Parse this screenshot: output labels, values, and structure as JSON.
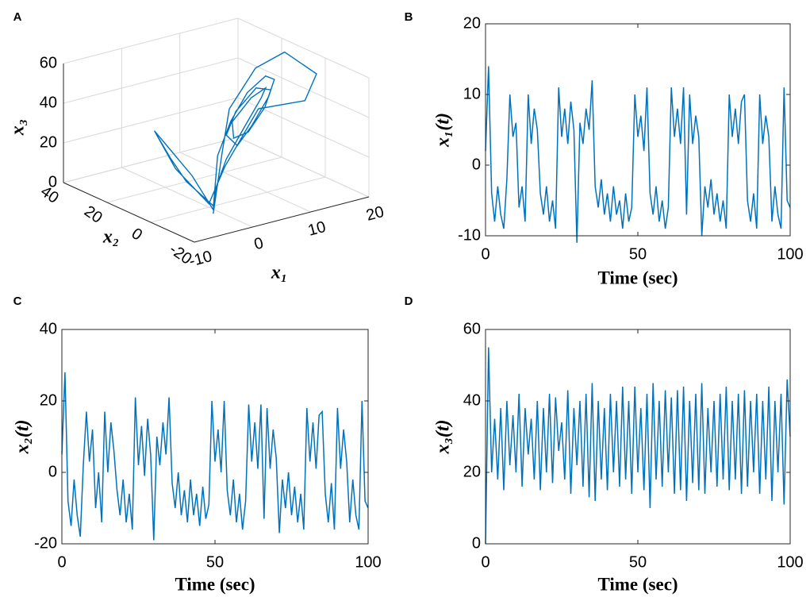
{
  "chart_data": [
    {
      "type": "line3d",
      "label": "A",
      "xlabel": "x₁",
      "ylabel": "x₂",
      "zlabel": "x₃",
      "color": "#0072bd",
      "xlim": [
        -10,
        20
      ],
      "xticks": [
        -10,
        0,
        10,
        20
      ],
      "ylim": [
        -20,
        40
      ],
      "yticks": [
        -20,
        0,
        20,
        40
      ],
      "zlim": [
        0,
        60
      ],
      "zticks": [
        0,
        20,
        40,
        60
      ],
      "grid": true,
      "x": [
        0,
        -1,
        -2,
        -3,
        -1,
        3,
        8,
        12,
        12,
        8,
        4,
        5,
        9,
        13,
        14,
        10,
        5,
        3,
        6,
        10,
        14,
        15,
        12,
        7,
        3,
        0,
        -2,
        -3,
        -1,
        0,
        0,
        -2,
        -3,
        2,
        10,
        18,
        20,
        16,
        8,
        2,
        0,
        -3
      ],
      "y": [
        25,
        15,
        5,
        -10,
        -6,
        0,
        5,
        8,
        6,
        2,
        0,
        2,
        6,
        9,
        9,
        5,
        1,
        0,
        3,
        7,
        10,
        10,
        6,
        1,
        -2,
        -4,
        -8,
        -10,
        5,
        20,
        25,
        10,
        -8,
        -2,
        4,
        4,
        4,
        8,
        0,
        -4,
        -6,
        -10
      ],
      "z": [
        26,
        18,
        12,
        8,
        14,
        22,
        32,
        42,
        48,
        48,
        40,
        30,
        28,
        36,
        44,
        50,
        44,
        34,
        25,
        30,
        40,
        48,
        54,
        52,
        42,
        28,
        14,
        6,
        14,
        22,
        26,
        16,
        8,
        20,
        40,
        38,
        50,
        62,
        64,
        50,
        30,
        4
      ]
    },
    {
      "type": "line",
      "label": "B",
      "xlabel": "Time (sec)",
      "ylabel": "x₁(t)",
      "color": "#0072bd",
      "xlim": [
        0,
        100
      ],
      "xticks": [
        0,
        50,
        100
      ],
      "ylim": [
        -10,
        20
      ],
      "yticks": [
        -10,
        0,
        10,
        20
      ],
      "x": [
        0,
        1,
        2,
        3,
        4,
        5,
        6,
        7,
        8,
        9,
        10,
        11,
        12,
        13,
        14,
        15,
        16,
        17,
        18,
        19,
        20,
        21,
        22,
        23,
        24,
        25,
        26,
        27,
        28,
        29,
        30,
        31,
        32,
        33,
        34,
        35,
        36,
        37,
        38,
        39,
        40,
        41,
        42,
        43,
        44,
        45,
        46,
        47,
        48,
        49,
        50,
        51,
        52,
        53,
        54,
        55,
        56,
        57,
        58,
        59,
        60,
        61,
        62,
        63,
        64,
        65,
        66,
        67,
        68,
        69,
        70,
        71,
        72,
        73,
        74,
        75,
        76,
        77,
        78,
        79,
        80,
        81,
        82,
        83,
        84,
        85,
        86,
        87,
        88,
        89,
        90,
        91,
        92,
        93,
        94,
        95,
        96,
        97,
        98,
        99,
        100
      ],
      "values": [
        2,
        14,
        -4,
        -8,
        -3,
        -7,
        -9,
        -2,
        10,
        4,
        6,
        -6,
        -3,
        -8,
        10,
        3,
        8,
        5,
        -4,
        -7,
        -3,
        -8,
        -5,
        -9,
        11,
        4,
        8,
        3,
        9,
        5,
        -11,
        6,
        3,
        8,
        5,
        12,
        -3,
        -6,
        -2,
        -7,
        -4,
        -8,
        -3,
        -7,
        -5,
        -9,
        -4,
        -8,
        -6,
        10,
        4,
        7,
        2,
        11,
        -4,
        -7,
        -3,
        -8,
        -5,
        -9,
        -6,
        11,
        4,
        8,
        3,
        11,
        -7,
        10,
        3,
        7,
        4,
        -10,
        -3,
        -6,
        -2,
        -7,
        -4,
        -8,
        -5,
        -9,
        10,
        4,
        8,
        3,
        9,
        10,
        -5,
        -8,
        -4,
        -9,
        10,
        3,
        7,
        4,
        -8,
        -3,
        -7,
        -9,
        11,
        -5,
        -6
      ]
    },
    {
      "type": "line",
      "label": "C",
      "xlabel": "Time (sec)",
      "ylabel": "x₂(t)",
      "color": "#0072bd",
      "xlim": [
        0,
        100
      ],
      "xticks": [
        0,
        50,
        100
      ],
      "ylim": [
        -20,
        40
      ],
      "yticks": [
        -20,
        0,
        20,
        40
      ],
      "x": [
        0,
        1,
        2,
        3,
        4,
        5,
        6,
        7,
        8,
        9,
        10,
        11,
        12,
        13,
        14,
        15,
        16,
        17,
        18,
        19,
        20,
        21,
        22,
        23,
        24,
        25,
        26,
        27,
        28,
        29,
        30,
        31,
        32,
        33,
        34,
        35,
        36,
        37,
        38,
        39,
        40,
        41,
        42,
        43,
        44,
        45,
        46,
        47,
        48,
        49,
        50,
        51,
        52,
        53,
        54,
        55,
        56,
        57,
        58,
        59,
        60,
        61,
        62,
        63,
        64,
        65,
        66,
        67,
        68,
        69,
        70,
        71,
        72,
        73,
        74,
        75,
        76,
        77,
        78,
        79,
        80,
        81,
        82,
        83,
        84,
        85,
        86,
        87,
        88,
        89,
        90,
        91,
        92,
        93,
        94,
        95,
        96,
        97,
        98,
        99,
        100
      ],
      "values": [
        5,
        28,
        -8,
        -15,
        -2,
        -12,
        -18,
        2,
        17,
        3,
        12,
        -10,
        0,
        -14,
        17,
        0,
        14,
        6,
        -5,
        -12,
        -2,
        -14,
        -6,
        -16,
        21,
        2,
        13,
        -1,
        15,
        5,
        -19,
        10,
        2,
        14,
        5,
        21,
        -3,
        -10,
        0,
        -12,
        -5,
        -14,
        -2,
        -12,
        -6,
        -15,
        -4,
        -13,
        -9,
        20,
        3,
        12,
        0,
        20,
        -5,
        -12,
        -2,
        -14,
        -6,
        -16,
        -8,
        19,
        3,
        14,
        1,
        19,
        -13,
        18,
        1,
        12,
        4,
        -17,
        -2,
        -10,
        0,
        -12,
        -4,
        -14,
        -6,
        -16,
        18,
        3,
        14,
        1,
        16,
        17,
        -6,
        -14,
        -3,
        -16,
        18,
        1,
        12,
        3,
        -14,
        -2,
        -12,
        -16,
        20,
        -8,
        -10
      ]
    },
    {
      "type": "line",
      "label": "D",
      "xlabel": "Time (sec)",
      "ylabel": "x₃(t)",
      "color": "#0072bd",
      "xlim": [
        0,
        100
      ],
      "xticks": [
        0,
        50,
        100
      ],
      "ylim": [
        0,
        60
      ],
      "yticks": [
        0,
        20,
        40,
        60
      ],
      "x": [
        0,
        1,
        2,
        3,
        4,
        5,
        6,
        7,
        8,
        9,
        10,
        11,
        12,
        13,
        14,
        15,
        16,
        17,
        18,
        19,
        20,
        21,
        22,
        23,
        24,
        25,
        26,
        27,
        28,
        29,
        30,
        31,
        32,
        33,
        34,
        35,
        36,
        37,
        38,
        39,
        40,
        41,
        42,
        43,
        44,
        45,
        46,
        47,
        48,
        49,
        50,
        51,
        52,
        53,
        54,
        55,
        56,
        57,
        58,
        59,
        60,
        61,
        62,
        63,
        64,
        65,
        66,
        67,
        68,
        69,
        70,
        71,
        72,
        73,
        74,
        75,
        76,
        77,
        78,
        79,
        80,
        81,
        82,
        83,
        84,
        85,
        86,
        87,
        88,
        89,
        90,
        91,
        92,
        93,
        94,
        95,
        96,
        97,
        98,
        99,
        100
      ],
      "values": [
        0,
        55,
        20,
        35,
        18,
        38,
        15,
        40,
        22,
        36,
        20,
        42,
        16,
        38,
        25,
        35,
        18,
        40,
        15,
        38,
        20,
        42,
        17,
        41,
        26,
        34,
        18,
        43,
        14,
        38,
        22,
        40,
        16,
        42,
        13,
        45,
        12,
        40,
        18,
        38,
        15,
        42,
        20,
        40,
        16,
        44,
        18,
        40,
        14,
        44,
        20,
        38,
        15,
        42,
        10,
        45,
        18,
        40,
        16,
        43,
        20,
        41,
        14,
        43,
        15,
        44,
        12,
        40,
        17,
        42,
        15,
        45,
        14,
        38,
        20,
        40,
        16,
        42,
        18,
        44,
        15,
        40,
        18,
        42,
        14,
        43,
        16,
        40,
        20,
        42,
        14,
        40,
        18,
        44,
        12,
        40,
        20,
        42,
        11,
        46,
        30
      ]
    }
  ]
}
